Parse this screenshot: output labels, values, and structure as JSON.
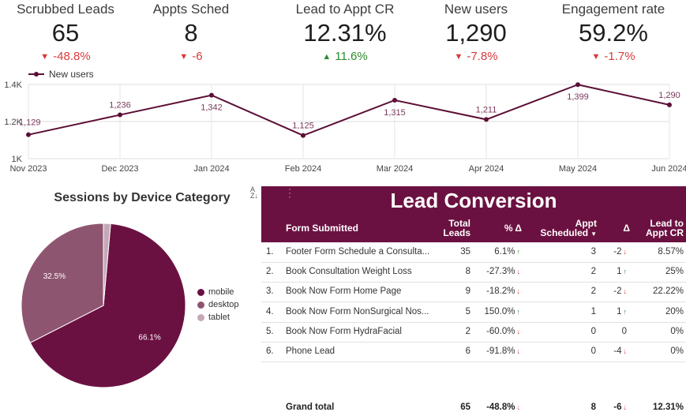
{
  "kpis": [
    {
      "label": "Scrubbed Leads",
      "value": "65",
      "change": "-48.8%",
      "dir": "down"
    },
    {
      "label": "Appts Sched",
      "value": "8",
      "change": "-6",
      "dir": "down"
    },
    {
      "label": "Lead to Appt CR",
      "value": "12.31%",
      "change": "11.6%",
      "dir": "up"
    },
    {
      "label": "New users",
      "value": "1,290",
      "change": "-7.8%",
      "dir": "down"
    },
    {
      "label": "Engagement rate",
      "value": "59.2%",
      "change": "-1.7%",
      "dir": "down"
    }
  ],
  "chart_data": [
    {
      "type": "line",
      "legend": "New users",
      "x": [
        "Nov 2023",
        "Dec 2023",
        "Jan 2024",
        "Feb 2024",
        "Mar 2024",
        "Apr 2024",
        "May 2024",
        "Jun 2024"
      ],
      "values": [
        1129,
        1236,
        1342,
        1125,
        1315,
        1211,
        1399,
        1290
      ],
      "labels": [
        "1,129",
        "1,236",
        "1,342",
        "1,125",
        "1,315",
        "1,211",
        "1,399",
        "1,290"
      ],
      "yticks": [
        "1K",
        "1.2K",
        "1.4K"
      ],
      "ylim": [
        1000,
        1400
      ],
      "color": "#5c0f36"
    },
    {
      "type": "pie",
      "title": "Sessions by Device Category",
      "slices": [
        {
          "name": "mobile",
          "value": 66.1,
          "label": "66.1%",
          "color": "#6b1141"
        },
        {
          "name": "desktop",
          "value": 32.5,
          "label": "32.5%",
          "color": "#8e5571"
        },
        {
          "name": "tablet",
          "value": 1.4,
          "label": "",
          "color": "#c5a8b7"
        }
      ]
    }
  ],
  "table": {
    "title": "Lead Conversion",
    "headers": {
      "form": "Form Submitted",
      "total1": "Total",
      "total2": "Leads",
      "pct": "% Δ",
      "appt1": "Appt",
      "appt2": "Scheduled",
      "delta": "Δ",
      "cr1": "Lead to",
      "cr2": "Appt CR"
    },
    "rows": [
      {
        "num": "1.",
        "form": "Footer Form Schedule a Consulta...",
        "leads": "35",
        "pct": "6.1%",
        "pct_dir": "up",
        "appt": "3",
        "delta": "-2",
        "delta_dir": "down",
        "cr": "8.57%"
      },
      {
        "num": "2.",
        "form": "Book Consultation Weight Loss",
        "leads": "8",
        "pct": "-27.3%",
        "pct_dir": "down",
        "appt": "2",
        "delta": "1",
        "delta_dir": "up",
        "cr": "25%"
      },
      {
        "num": "3.",
        "form": "Book Now Form Home Page",
        "leads": "9",
        "pct": "-18.2%",
        "pct_dir": "down",
        "appt": "2",
        "delta": "-2",
        "delta_dir": "down",
        "cr": "22.22%"
      },
      {
        "num": "4.",
        "form": "Book Now Form NonSurgical Nos...",
        "leads": "5",
        "pct": "150.0%",
        "pct_dir": "up",
        "appt": "1",
        "delta": "1",
        "delta_dir": "up",
        "cr": "20%"
      },
      {
        "num": "5.",
        "form": "Book Now Form HydraFacial",
        "leads": "2",
        "pct": "-60.0%",
        "pct_dir": "down",
        "appt": "0",
        "delta": "0",
        "delta_dir": "none",
        "cr": "0%"
      },
      {
        "num": "6.",
        "form": "Phone Lead",
        "leads": "6",
        "pct": "-91.8%",
        "pct_dir": "down",
        "appt": "0",
        "delta": "-4",
        "delta_dir": "down",
        "cr": "0%"
      }
    ],
    "grand": {
      "label": "Grand total",
      "leads": "65",
      "pct": "-48.8%",
      "appt": "8",
      "delta": "-6",
      "cr": "12.31%"
    }
  }
}
